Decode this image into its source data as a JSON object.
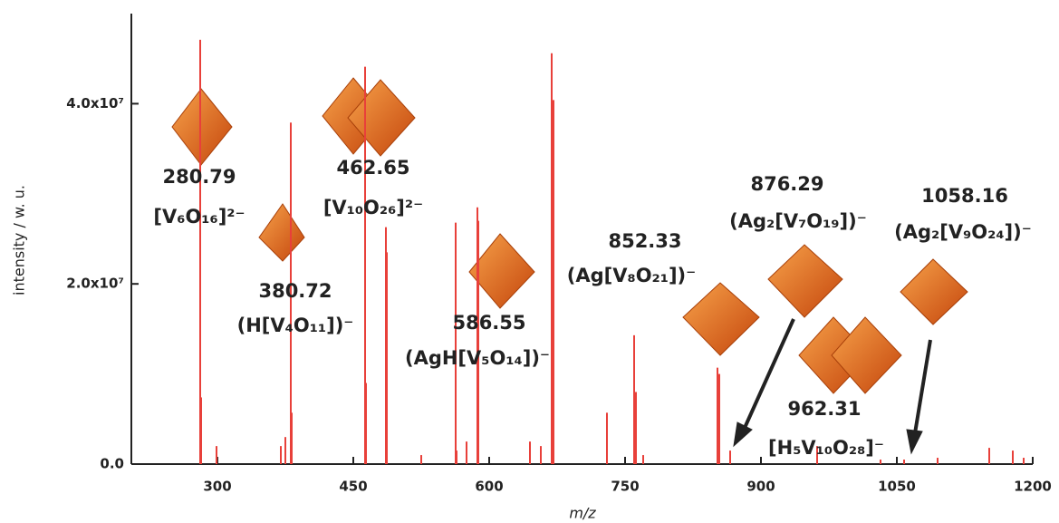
{
  "chart_data": {
    "type": "stem",
    "x_label": "m/z",
    "y_label": "intensity / w. u.",
    "color": "#e8403a",
    "xlim": [
      205,
      1200
    ],
    "xticks": [
      300,
      450,
      600,
      750,
      900,
      1050,
      1200
    ],
    "ylim": [
      0,
      50000000
    ],
    "yticks": [
      {
        "value": 0,
        "label": "0.0"
      },
      {
        "value": 20000000,
        "label": "2.0x10⁷"
      },
      {
        "value": 40000000,
        "label": "4.0x10⁷"
      }
    ],
    "x": [
      281,
      282,
      299,
      370,
      375,
      381,
      382,
      463,
      464,
      486,
      487,
      525,
      563,
      564,
      575,
      587,
      588,
      645,
      657,
      669,
      671,
      730,
      760,
      762,
      770,
      852,
      854,
      866,
      962,
      1032,
      1058,
      1095,
      1152,
      1178,
      1190
    ],
    "values": [
      47100000,
      7400000,
      2000000,
      2000000,
      3000000,
      37900000,
      5700000,
      44100000,
      9000000,
      26300000,
      23500000,
      1000000,
      26800000,
      1500000,
      2500000,
      28500000,
      27000000,
      2500000,
      2000000,
      45600000,
      40400000,
      5700000,
      14300000,
      8000000,
      1000000,
      10700000,
      10000000,
      1500000,
      2000000,
      500000,
      500000,
      700000,
      1800000,
      1500000,
      700000
    ],
    "annotations": [
      {
        "text": "280.79",
        "formula": "[V₆O₁₆]²⁻"
      },
      {
        "text": "380.72",
        "formula": "(H[V₄O₁₁])⁻"
      },
      {
        "text": "462.65",
        "formula": "[V₁₀O₂₆]²⁻"
      },
      {
        "text": "586.55",
        "formula": "(AgH[V₅O₁₄])⁻"
      },
      {
        "text": "852.33",
        "formula": "(Ag[V₈O₂₁])⁻"
      },
      {
        "text": "876.29",
        "formula": "(Ag₂[V₇O₁₉])⁻"
      },
      {
        "text": "962.31",
        "formula": "[H₅V₁₀O₂₈]⁻"
      },
      {
        "text": "1058.16",
        "formula": "(Ag₂[V₉O₂₄])⁻"
      }
    ]
  }
}
